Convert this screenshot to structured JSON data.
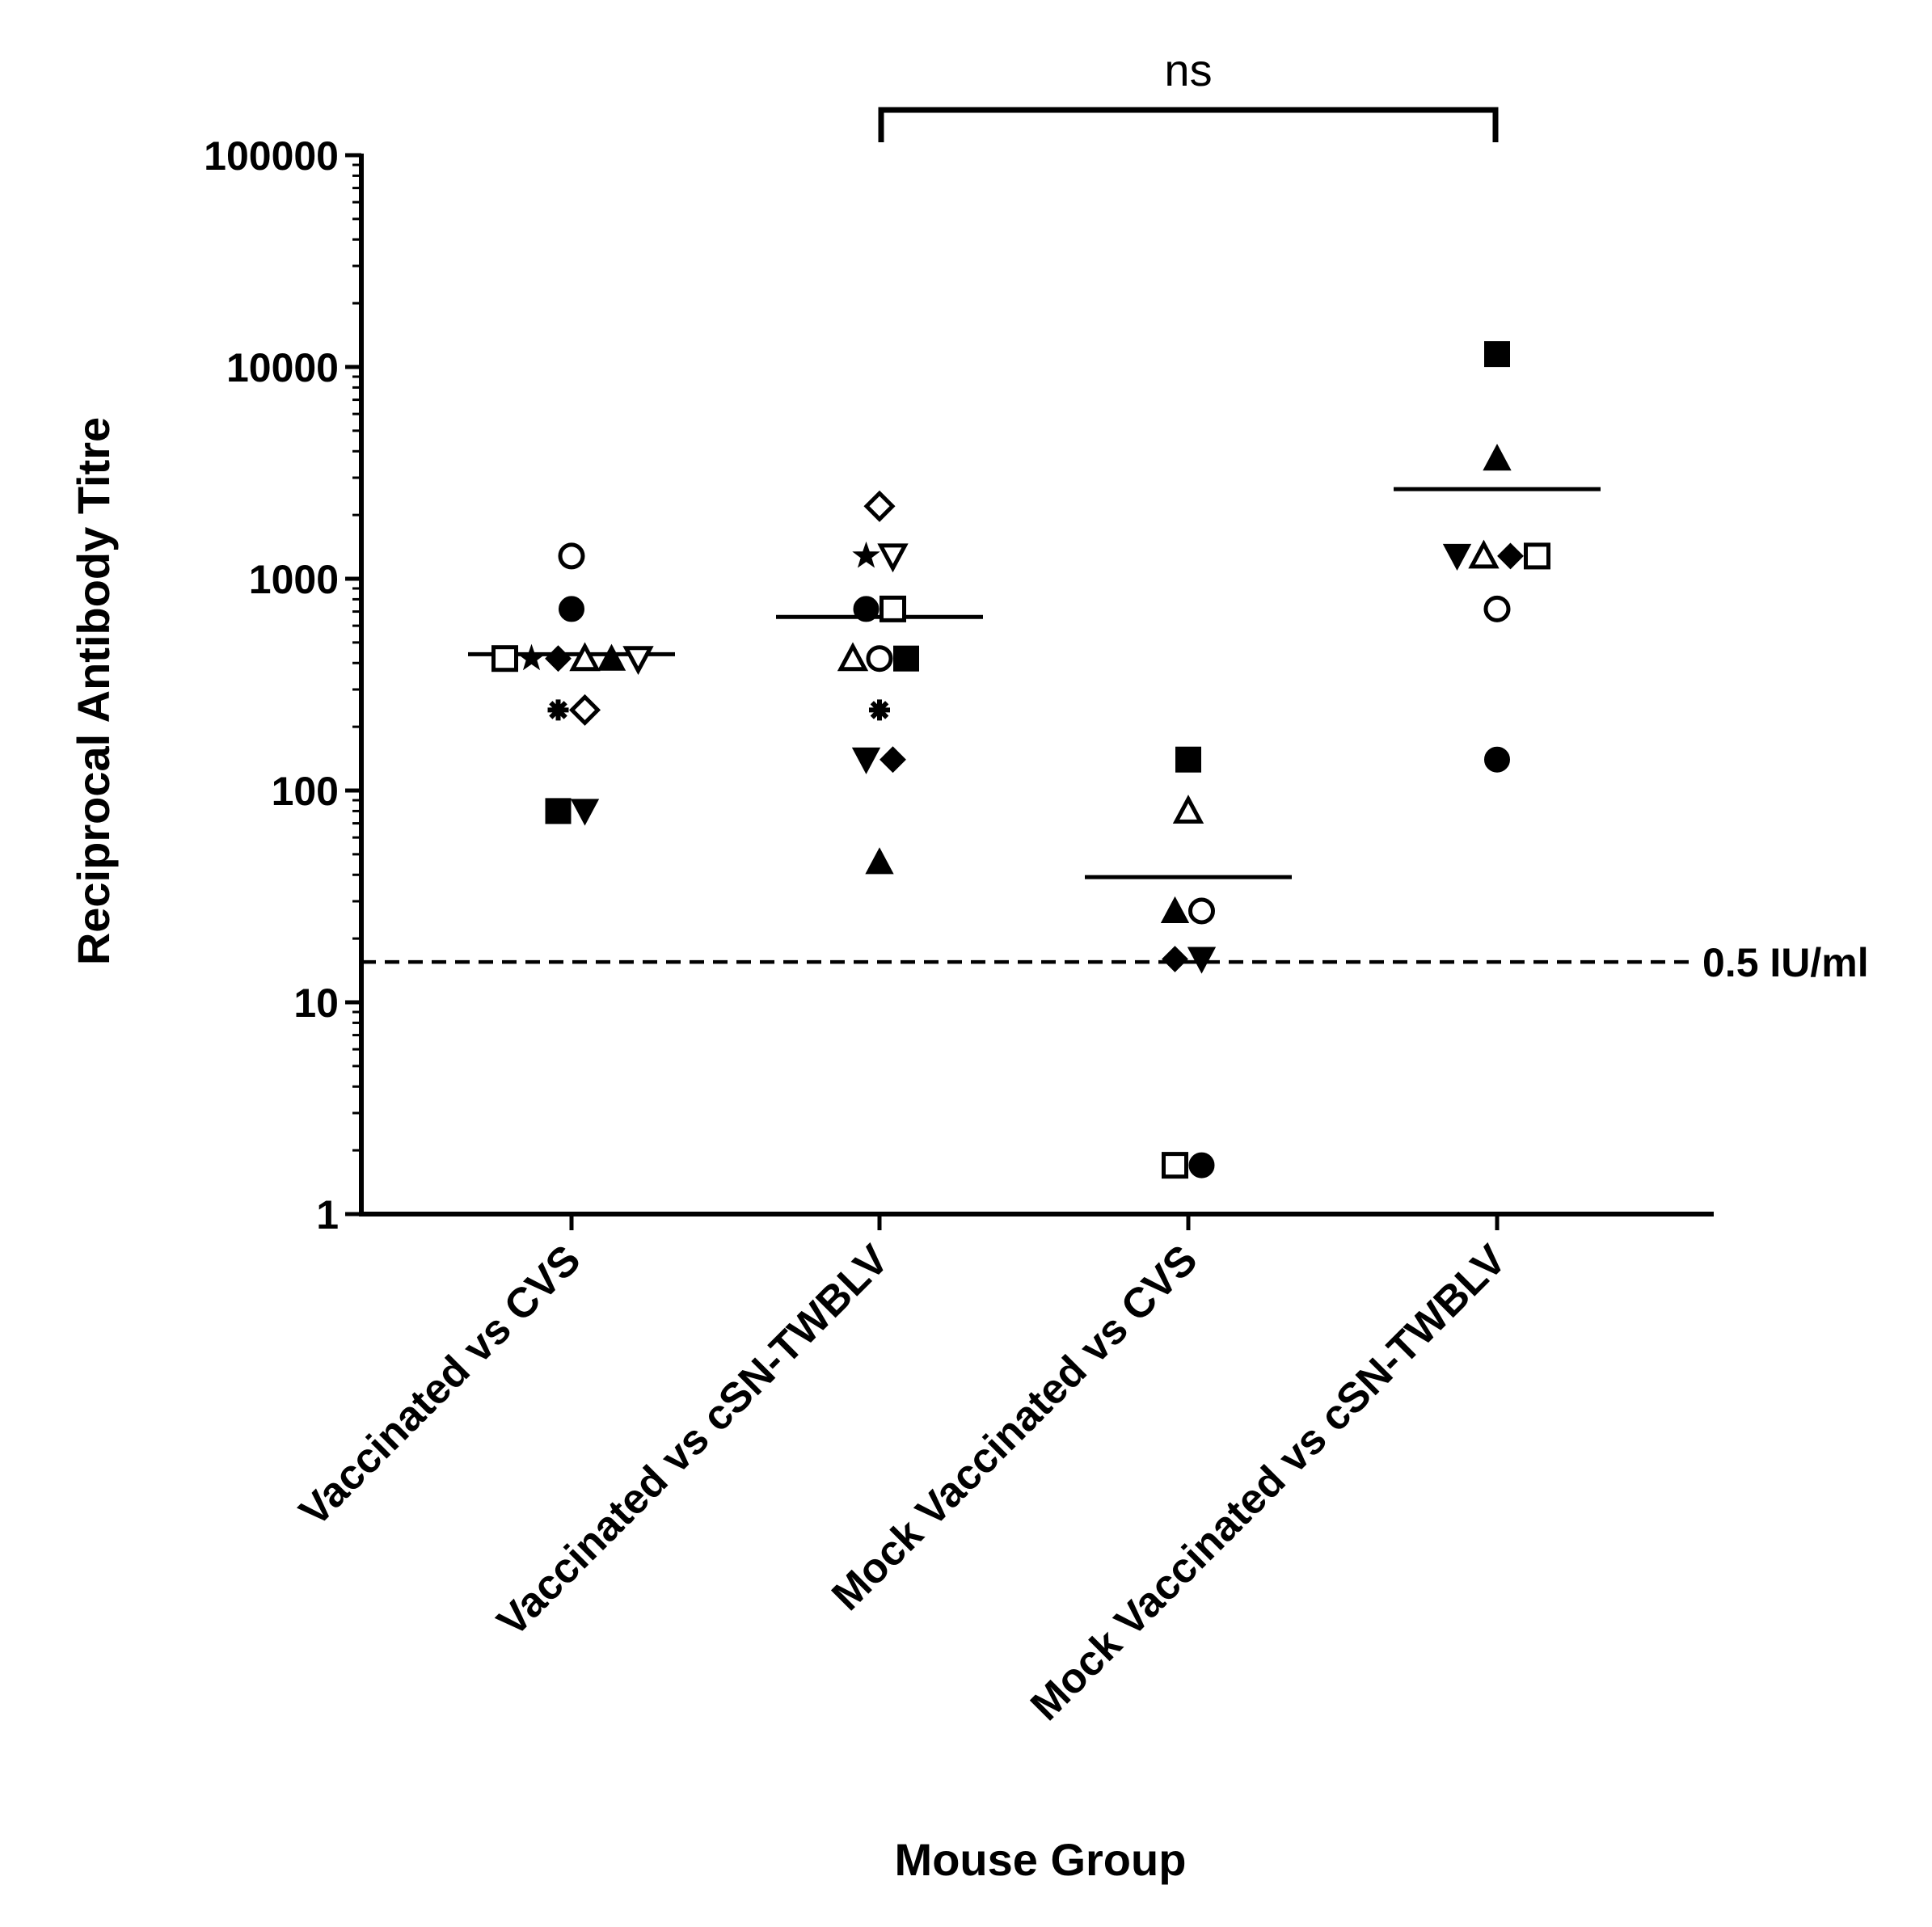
{
  "chart_data": {
    "type": "scatter",
    "title": "",
    "xlabel": "Mouse Group",
    "ylabel": "Reciprocal Antibody Titre",
    "yscale": "log",
    "ylim": [
      1,
      100000
    ],
    "yticks": [
      {
        "value": 1,
        "label": "1"
      },
      {
        "value": 10,
        "label": "10"
      },
      {
        "value": 100,
        "label": "100"
      },
      {
        "value": 1000,
        "label": "1000"
      },
      {
        "value": 10000,
        "label": "10000"
      },
      {
        "value": 100000,
        "label": "100000"
      }
    ],
    "categories": [
      "Vaccinated vs CVS",
      "Vaccinated vs cSN-TWBLV",
      "Mock Vaccinated vs CVS",
      "Mock Vaccinated vs cSN-TWBLV"
    ],
    "groups": [
      {
        "name": "Vaccinated vs CVS",
        "mean": 440,
        "points": [
          {
            "value": 1280,
            "marker": "circle-open"
          },
          {
            "value": 720,
            "marker": "circle-filled"
          },
          {
            "value": 420,
            "marker": "square-open"
          },
          {
            "value": 420,
            "marker": "star"
          },
          {
            "value": 420,
            "marker": "diamond-filled"
          },
          {
            "value": 420,
            "marker": "triangle-up-open"
          },
          {
            "value": 420,
            "marker": "triangle-up-filled"
          },
          {
            "value": 420,
            "marker": "triangle-down-open"
          },
          {
            "value": 240,
            "marker": "asterisk"
          },
          {
            "value": 240,
            "marker": "diamond-open"
          },
          {
            "value": 80,
            "marker": "square-filled"
          },
          {
            "value": 80,
            "marker": "triangle-down-filled"
          }
        ]
      },
      {
        "name": "Vaccinated vs cSN-TWBLV",
        "mean": 660,
        "points": [
          {
            "value": 2200,
            "marker": "diamond-open"
          },
          {
            "value": 1280,
            "marker": "star"
          },
          {
            "value": 1280,
            "marker": "triangle-down-open"
          },
          {
            "value": 720,
            "marker": "circle-filled"
          },
          {
            "value": 720,
            "marker": "square-open"
          },
          {
            "value": 420,
            "marker": "triangle-up-open"
          },
          {
            "value": 420,
            "marker": "circle-open"
          },
          {
            "value": 420,
            "marker": "square-filled"
          },
          {
            "value": 240,
            "marker": "asterisk"
          },
          {
            "value": 140,
            "marker": "triangle-down-filled"
          },
          {
            "value": 140,
            "marker": "diamond-filled"
          },
          {
            "value": 46,
            "marker": "triangle-up-filled"
          }
        ]
      },
      {
        "name": "Mock Vaccinated vs CVS",
        "mean": 39,
        "points": [
          {
            "value": 140,
            "marker": "square-filled"
          },
          {
            "value": 80,
            "marker": "triangle-up-open"
          },
          {
            "value": 27,
            "marker": "triangle-up-filled"
          },
          {
            "value": 27,
            "marker": "circle-open"
          },
          {
            "value": 16,
            "marker": "diamond-filled"
          },
          {
            "value": 16,
            "marker": "triangle-down-filled"
          },
          {
            "value": 1.7,
            "marker": "square-open"
          },
          {
            "value": 1.7,
            "marker": "circle-filled"
          }
        ]
      },
      {
        "name": "Mock Vaccinated vs cSN-TWBLV",
        "mean": 2650,
        "points": [
          {
            "value": 11500,
            "marker": "square-filled"
          },
          {
            "value": 3700,
            "marker": "triangle-up-filled"
          },
          {
            "value": 1280,
            "marker": "triangle-down-filled"
          },
          {
            "value": 1280,
            "marker": "triangle-up-open"
          },
          {
            "value": 1280,
            "marker": "diamond-filled"
          },
          {
            "value": 1280,
            "marker": "square-open"
          },
          {
            "value": 720,
            "marker": "circle-open"
          },
          {
            "value": 140,
            "marker": "circle-filled"
          }
        ]
      }
    ],
    "reference_line": {
      "value": 15.5,
      "label": "0.5 IU/ml",
      "style": "dashed"
    },
    "significance": {
      "from": "Vaccinated vs cSN-TWBLV",
      "to": "Mock Vaccinated vs cSN-TWBLV",
      "label": "ns"
    }
  }
}
